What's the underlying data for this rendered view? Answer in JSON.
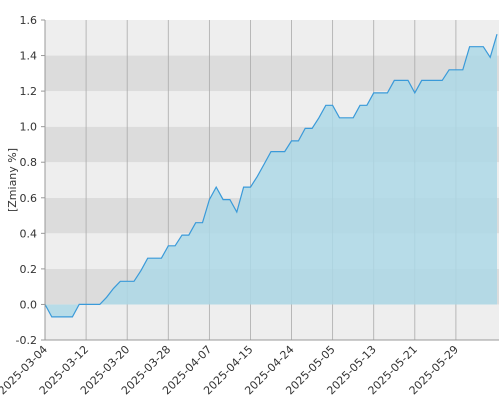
{
  "chart_data": {
    "type": "area",
    "y_label": "[Zmiany %]",
    "categories": [
      "2025-03-04",
      null,
      null,
      null,
      null,
      null,
      "2025-03-12",
      null,
      null,
      null,
      null,
      null,
      "2025-03-20",
      null,
      null,
      null,
      null,
      null,
      "2025-03-28",
      null,
      null,
      null,
      null,
      null,
      "2025-04-07",
      null,
      null,
      null,
      null,
      null,
      "2025-04-15",
      null,
      null,
      null,
      null,
      null,
      "2025-04-24",
      null,
      null,
      null,
      null,
      null,
      "2025-05-05",
      null,
      null,
      null,
      null,
      null,
      "2025-05-13",
      null,
      null,
      null,
      null,
      null,
      "2025-05-21",
      null,
      null,
      null,
      null,
      null,
      "2025-05-29",
      null,
      null,
      null,
      null,
      null,
      null
    ],
    "values": [
      0.0,
      -0.07,
      -0.07,
      -0.07,
      -0.07,
      0.0,
      0.0,
      0.0,
      0.0,
      0.04,
      0.09,
      0.13,
      0.13,
      0.13,
      0.19,
      0.26,
      0.26,
      0.26,
      0.33,
      0.33,
      0.39,
      0.39,
      0.46,
      0.46,
      0.59,
      0.66,
      0.59,
      0.59,
      0.52,
      0.66,
      0.66,
      0.72,
      0.79,
      0.86,
      0.86,
      0.86,
      0.92,
      0.92,
      0.99,
      0.99,
      1.05,
      1.12,
      1.12,
      1.05,
      1.05,
      1.05,
      1.12,
      1.12,
      1.19,
      1.19,
      1.19,
      1.26,
      1.26,
      1.26,
      1.19,
      1.26,
      1.26,
      1.26,
      1.26,
      1.32,
      1.32,
      1.32,
      1.45,
      1.45,
      1.45,
      1.39,
      1.52
    ],
    "color": "#3a9ad9",
    "fill_color": "#add8e6",
    "band_colors": [
      "#eeeeee",
      "#dcdcdc"
    ],
    "ylim": [
      -0.2,
      1.6
    ],
    "yticks": [
      -0.2,
      {
        "value": 0,
        "label": "0.0"
      },
      0.2,
      0.4,
      0.6,
      0.8,
      {
        "value": 1,
        "label": "1.0"
      },
      1.2,
      1.4,
      1.6
    ],
    "grid": true
  }
}
